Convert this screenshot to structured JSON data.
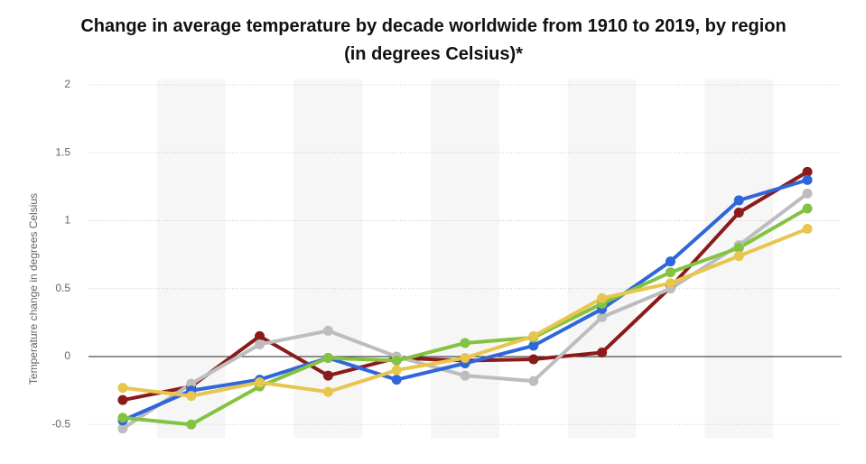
{
  "chart_data": {
    "type": "line",
    "title": "Change in average temperature by decade worldwide from 1910 to 2019, by region (in degrees Celsius)*",
    "y_label": "Temperature change in degrees Celsius",
    "categories": [
      null,
      null,
      null,
      null,
      null,
      null,
      null,
      null,
      null,
      null,
      null
    ],
    "series": [
      {
        "color": "#8b1a1a",
        "values": [
          -0.32,
          -0.22,
          0.15,
          -0.14,
          -0.01,
          -0.03,
          -0.02,
          0.03,
          0.51,
          1.06,
          1.36
        ]
      },
      {
        "color": "#bdbdbd",
        "values": [
          -0.53,
          -0.2,
          0.09,
          0.19,
          0.0,
          -0.14,
          -0.18,
          0.29,
          0.5,
          0.82,
          1.2
        ]
      },
      {
        "color": "#2f66d9",
        "values": [
          -0.47,
          -0.25,
          -0.17,
          -0.01,
          -0.17,
          -0.05,
          0.08,
          0.35,
          0.7,
          1.15,
          1.3
        ]
      },
      {
        "color": "#84c341",
        "values": [
          -0.45,
          -0.5,
          -0.22,
          -0.01,
          -0.03,
          0.1,
          0.14,
          0.39,
          0.62,
          0.8,
          1.09
        ]
      },
      {
        "color": "#e8c54e",
        "values": [
          -0.23,
          -0.29,
          -0.19,
          -0.26,
          -0.1,
          -0.01,
          0.15,
          0.43,
          0.54,
          0.74,
          0.94
        ]
      }
    ],
    "ylim": [
      -0.6,
      2
    ],
    "yticks": [
      -0.5,
      0,
      0.5,
      1,
      1.5,
      2
    ],
    "grid": true
  }
}
